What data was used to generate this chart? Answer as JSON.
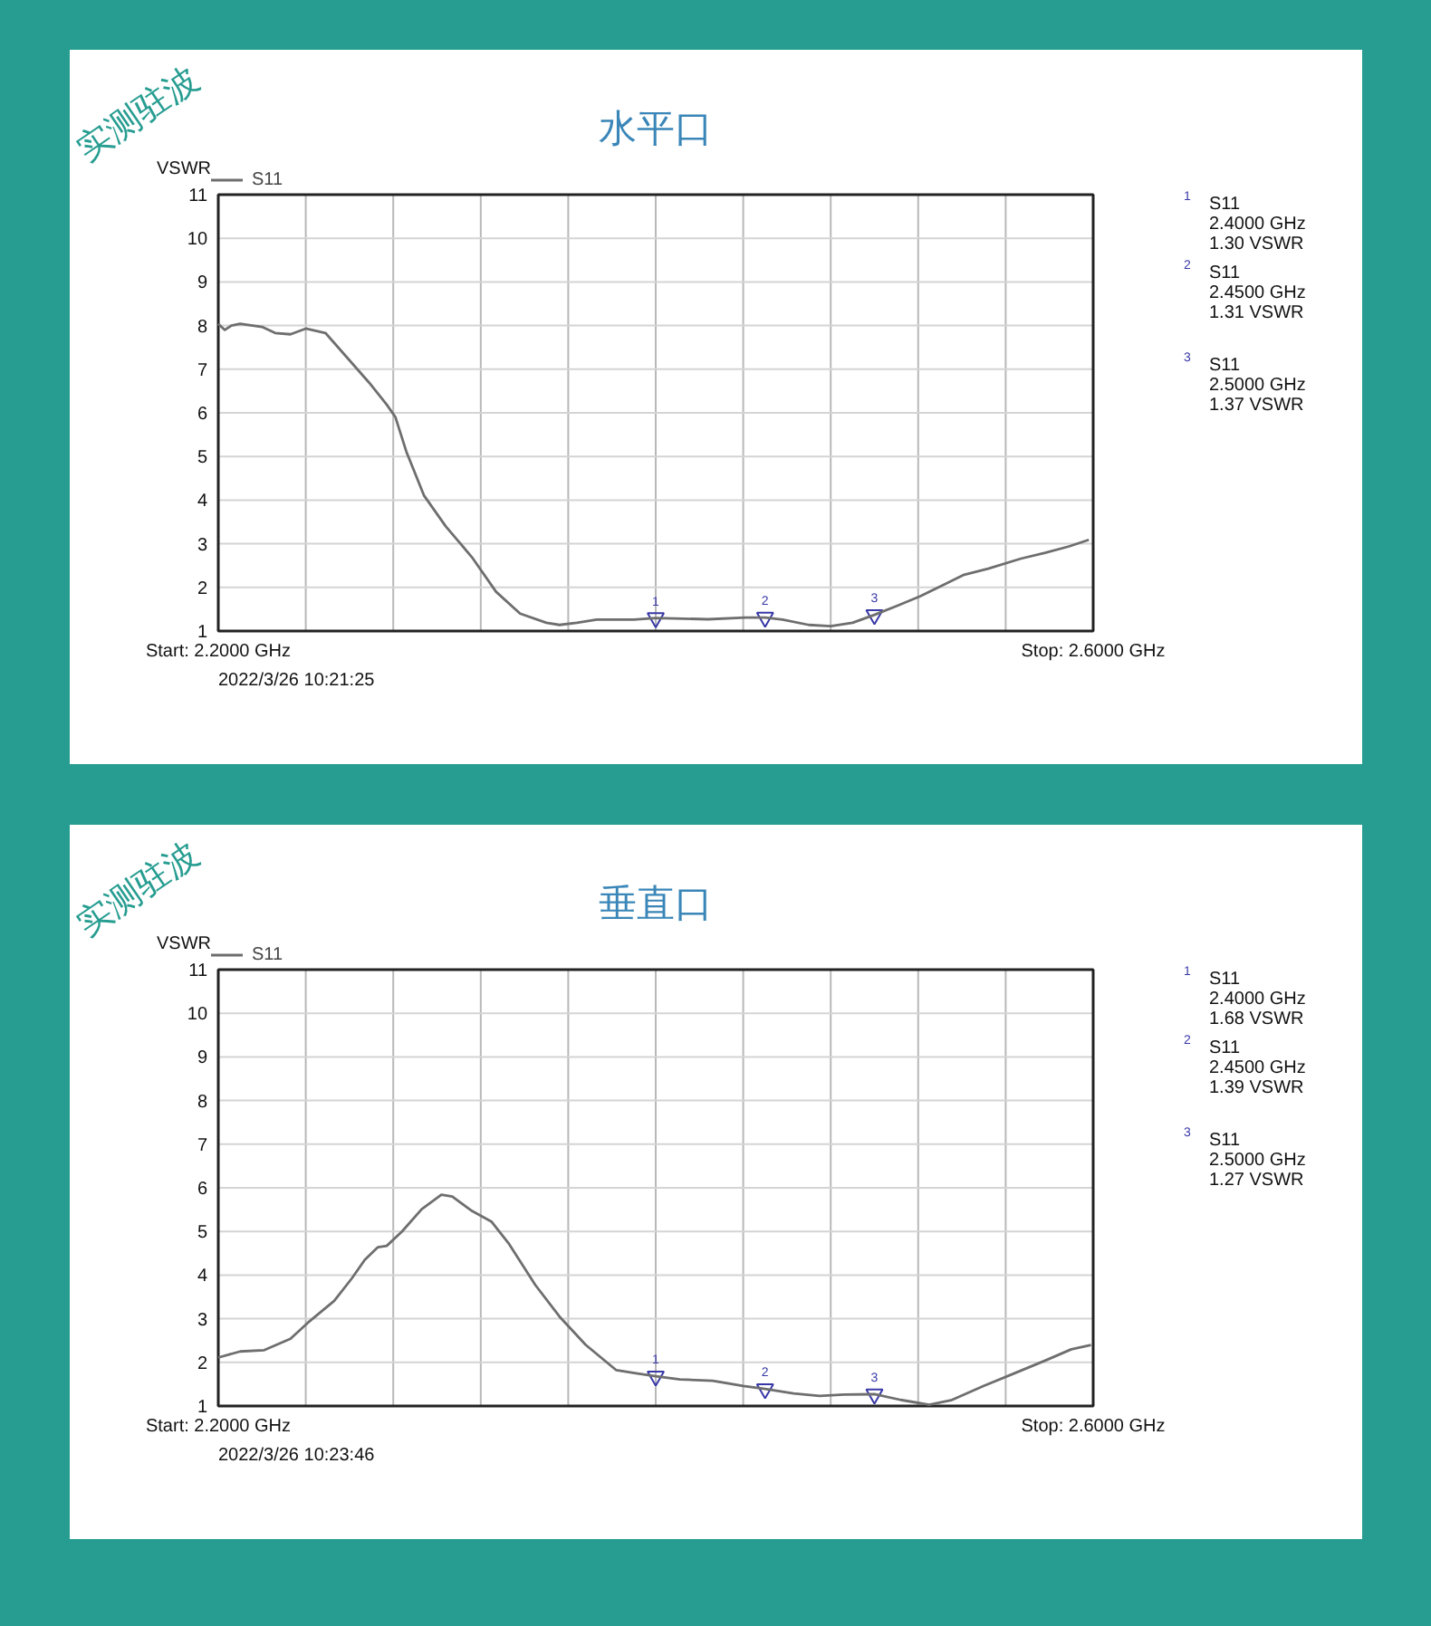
{
  "chart_data": [
    {
      "type": "line",
      "title": "水平口",
      "ylabel": "VSWR",
      "xlim": [
        2.2,
        2.6
      ],
      "xticks": [
        {
          "value": 2.2,
          "label": "Start: 2.2000 GHz"
        },
        {
          "value": 2.24,
          "label": null
        },
        {
          "value": 2.28,
          "label": null
        },
        {
          "value": 2.32,
          "label": null
        },
        {
          "value": 2.36,
          "label": null
        },
        {
          "value": 2.4,
          "label": null
        },
        {
          "value": 2.44,
          "label": null
        },
        {
          "value": 2.48,
          "label": null
        },
        {
          "value": 2.52,
          "label": null
        },
        {
          "value": 2.56,
          "label": null
        },
        {
          "value": 2.6,
          "label": "Stop: 2.6000 GHz"
        }
      ],
      "ylim": [
        1,
        11
      ],
      "yticks": [
        1,
        2,
        3,
        4,
        5,
        6,
        7,
        8,
        9,
        10,
        11
      ],
      "grid": true,
      "legend": "top left",
      "series": [
        {
          "type": "scatter",
          "marker": "triangle",
          "color": "#3838a8",
          "x": [
            2.4,
            2.45,
            2.5
          ],
          "values": [
            1.3,
            1.31,
            1.37
          ]
        },
        {
          "name": "S11",
          "color": "#6e6e6e",
          "x": [
            2.2,
            2.203,
            2.206,
            2.21,
            2.22,
            2.226,
            2.233,
            2.24,
            2.249,
            2.259,
            2.269,
            2.277,
            2.281,
            2.286,
            2.294,
            2.304,
            2.316,
            2.327,
            2.338,
            2.35,
            2.356,
            2.364,
            2.373,
            2.39,
            2.4,
            2.424,
            2.441,
            2.45,
            2.458,
            2.47,
            2.48,
            2.49,
            2.5,
            2.51,
            2.521,
            2.532,
            2.541,
            2.552,
            2.567,
            2.578,
            2.589,
            2.598
          ],
          "values": [
            8.04,
            7.9,
            8.0,
            8.04,
            7.97,
            7.83,
            7.8,
            7.93,
            7.83,
            7.26,
            6.69,
            6.19,
            5.9,
            5.11,
            4.11,
            3.4,
            2.69,
            1.9,
            1.4,
            1.19,
            1.14,
            1.19,
            1.26,
            1.26,
            1.3,
            1.27,
            1.31,
            1.31,
            1.26,
            1.14,
            1.11,
            1.19,
            1.37,
            1.57,
            1.8,
            2.07,
            2.29,
            2.43,
            2.66,
            2.79,
            2.94,
            3.09
          ]
        }
      ],
      "annotations": [
        "实测驻波",
        "2022/3/26 10:21:25",
        "S11\n2.4000 GHz\n1.30 VSWR",
        "S11\n2.4500 GHz\n1.31 VSWR",
        "S11\n2.5000 GHz\n1.37 VSWR",
        {
          "text": "1",
          "x": 2.4,
          "y": 1.3
        },
        {
          "text": "2",
          "x": 2.45,
          "y": 1.31
        },
        {
          "text": "3",
          "x": 2.5,
          "y": 1.37
        }
      ]
    },
    {
      "type": "line",
      "title": "垂直口",
      "ylabel": "VSWR",
      "xlim": [
        2.2,
        2.6
      ],
      "xticks": [
        {
          "value": 2.2,
          "label": "Start: 2.2000 GHz"
        },
        {
          "value": 2.24,
          "label": null
        },
        {
          "value": 2.28,
          "label": null
        },
        {
          "value": 2.32,
          "label": null
        },
        {
          "value": 2.36,
          "label": null
        },
        {
          "value": 2.4,
          "label": null
        },
        {
          "value": 2.44,
          "label": null
        },
        {
          "value": 2.48,
          "label": null
        },
        {
          "value": 2.52,
          "label": null
        },
        {
          "value": 2.56,
          "label": null
        },
        {
          "value": 2.6,
          "label": "Stop: 2.6000 GHz"
        }
      ],
      "ylim": [
        1,
        11
      ],
      "yticks": [
        1,
        2,
        3,
        4,
        5,
        6,
        7,
        8,
        9,
        10,
        11
      ],
      "grid": true,
      "legend": "top left",
      "series": [
        {
          "type": "scatter",
          "marker": "triangle",
          "color": "#3838a8",
          "x": [
            2.4,
            2.45,
            2.5
          ],
          "values": [
            1.68,
            1.39,
            1.27
          ]
        },
        {
          "name": "S11",
          "color": "#6e6e6e",
          "x": [
            2.2,
            2.21,
            2.221,
            2.233,
            2.241,
            2.253,
            2.261,
            2.267,
            2.273,
            2.277,
            2.284,
            2.293,
            2.302,
            2.307,
            2.316,
            2.325,
            2.333,
            2.345,
            2.356,
            2.368,
            2.382,
            2.391,
            2.4,
            2.411,
            2.426,
            2.44,
            2.45,
            2.463,
            2.475,
            2.486,
            2.5,
            2.512,
            2.525,
            2.535,
            2.55,
            2.564,
            2.578,
            2.59,
            2.599
          ],
          "values": [
            2.11,
            2.25,
            2.28,
            2.54,
            2.91,
            3.41,
            3.92,
            4.35,
            4.64,
            4.67,
            5.0,
            5.51,
            5.84,
            5.8,
            5.47,
            5.22,
            4.71,
            3.77,
            3.05,
            2.4,
            1.82,
            1.75,
            1.68,
            1.61,
            1.58,
            1.46,
            1.39,
            1.29,
            1.23,
            1.26,
            1.27,
            1.14,
            1.03,
            1.13,
            1.46,
            1.75,
            2.04,
            2.3,
            2.4
          ]
        }
      ],
      "annotations": [
        "实测驻波",
        "2022/3/26 10:23:46",
        "S11\n2.4000 GHz\n1.68 VSWR",
        "S11\n2.4500 GHz\n1.39 VSWR",
        "S11\n2.5000 GHz\n1.27 VSWR",
        {
          "text": "1",
          "x": 2.4,
          "y": 1.68
        },
        {
          "text": "2",
          "x": 2.45,
          "y": 1.39
        },
        {
          "text": "3",
          "x": 2.5,
          "y": 1.27
        }
      ]
    }
  ]
}
